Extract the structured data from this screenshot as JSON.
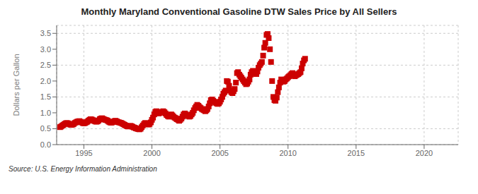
{
  "chart_data": {
    "type": "scatter",
    "title": "Monthly Maryland Conventional Gasoline DTW Sales Price by All Sellers",
    "ylabel": "Dollars per Gallon",
    "annotations": [
      "Source: U.S. Energy Information Administration"
    ],
    "color": "#CC0000",
    "marker": "square",
    "grid": true,
    "xlim": [
      1993.0,
      2022.5
    ],
    "ylim": [
      0.0,
      3.75
    ],
    "xticks": [
      1995,
      2000,
      2005,
      2010,
      2015,
      2020
    ],
    "yticks": [
      {
        "value": 0.0,
        "label": "0.0"
      },
      0.5,
      {
        "value": 1.0,
        "label": "1.0"
      },
      1.5,
      {
        "value": 2.0,
        "label": "2.0"
      },
      2.5,
      {
        "value": 3.0,
        "label": "3.0"
      },
      3.5
    ],
    "x": [
      1993.25,
      1993.33,
      1993.42,
      1993.5,
      1993.58,
      1993.67,
      1993.75,
      1993.83,
      1993.92,
      1994.0,
      1994.08,
      1994.17,
      1994.25,
      1994.33,
      1994.42,
      1994.5,
      1994.58,
      1994.67,
      1994.75,
      1994.83,
      1994.92,
      1995.0,
      1995.08,
      1995.17,
      1995.25,
      1995.33,
      1995.42,
      1995.5,
      1995.58,
      1995.67,
      1995.75,
      1995.83,
      1995.92,
      1996.0,
      1996.08,
      1996.17,
      1996.25,
      1996.33,
      1996.42,
      1996.5,
      1996.58,
      1996.67,
      1996.75,
      1996.83,
      1996.92,
      1997.0,
      1997.08,
      1997.17,
      1997.25,
      1997.33,
      1997.42,
      1997.5,
      1997.58,
      1997.67,
      1997.75,
      1997.83,
      1997.92,
      1998.0,
      1998.08,
      1998.17,
      1998.25,
      1998.33,
      1998.42,
      1998.5,
      1998.58,
      1998.67,
      1998.75,
      1998.83,
      1998.92,
      1999.0,
      1999.08,
      1999.17,
      1999.25,
      1999.33,
      1999.42,
      1999.5,
      1999.58,
      1999.67,
      1999.75,
      1999.83,
      1999.92,
      2000.0,
      2000.08,
      2000.17,
      2000.25,
      2000.33,
      2000.42,
      2000.5,
      2000.58,
      2000.67,
      2000.75,
      2000.83,
      2000.92,
      2001.0,
      2001.08,
      2001.17,
      2001.25,
      2001.33,
      2001.42,
      2001.5,
      2001.58,
      2001.67,
      2001.75,
      2001.83,
      2001.92,
      2002.0,
      2002.08,
      2002.17,
      2002.25,
      2002.33,
      2002.42,
      2002.5,
      2002.58,
      2002.67,
      2002.75,
      2002.83,
      2002.92,
      2003.0,
      2003.08,
      2003.17,
      2003.25,
      2003.33,
      2003.42,
      2003.5,
      2003.58,
      2003.67,
      2003.75,
      2003.83,
      2003.92,
      2004.0,
      2004.08,
      2004.17,
      2004.25,
      2004.33,
      2004.42,
      2004.5,
      2004.58,
      2004.67,
      2004.75,
      2004.83,
      2004.92,
      2005.0,
      2005.08,
      2005.17,
      2005.25,
      2005.33,
      2005.42,
      2005.5,
      2005.58,
      2005.67,
      2005.75,
      2005.83,
      2005.92,
      2006.0,
      2006.08,
      2006.17,
      2006.25,
      2006.33,
      2006.42,
      2006.5,
      2006.58,
      2006.67,
      2006.75,
      2006.83,
      2006.92,
      2007.0,
      2007.08,
      2007.17,
      2007.25,
      2007.33,
      2007.42,
      2007.5,
      2007.58,
      2007.67,
      2007.75,
      2007.83,
      2007.92,
      2008.0,
      2008.08,
      2008.17,
      2008.25,
      2008.33,
      2008.42,
      2008.5,
      2008.58,
      2008.67,
      2008.75,
      2008.83,
      2008.92,
      2009.0,
      2009.08,
      2009.17,
      2009.25,
      2009.33,
      2009.42,
      2009.5,
      2009.58,
      2009.67,
      2009.75,
      2009.83,
      2009.92,
      2010.0,
      2010.08,
      2010.17,
      2010.25,
      2010.33,
      2010.42,
      2010.5,
      2010.58,
      2010.67,
      2010.75,
      2010.83,
      2010.92,
      2011.0,
      2011.08,
      2011.17,
      2011.25
    ],
    "values": [
      0.55,
      0.57,
      0.6,
      0.62,
      0.65,
      0.67,
      0.68,
      0.67,
      0.65,
      0.63,
      0.62,
      0.63,
      0.65,
      0.68,
      0.7,
      0.72,
      0.73,
      0.74,
      0.72,
      0.7,
      0.68,
      0.67,
      0.68,
      0.7,
      0.72,
      0.75,
      0.78,
      0.8,
      0.79,
      0.77,
      0.75,
      0.73,
      0.72,
      0.73,
      0.76,
      0.8,
      0.82,
      0.83,
      0.81,
      0.79,
      0.78,
      0.77,
      0.75,
      0.72,
      0.7,
      0.69,
      0.7,
      0.72,
      0.74,
      0.75,
      0.73,
      0.71,
      0.7,
      0.69,
      0.68,
      0.66,
      0.64,
      0.62,
      0.6,
      0.58,
      0.57,
      0.58,
      0.59,
      0.58,
      0.56,
      0.54,
      0.53,
      0.51,
      0.5,
      0.49,
      0.48,
      0.5,
      0.55,
      0.6,
      0.65,
      0.68,
      0.67,
      0.65,
      0.63,
      0.65,
      0.7,
      0.78,
      0.85,
      0.95,
      1.03,
      1.05,
      1.02,
      0.98,
      1.0,
      1.02,
      1.03,
      1.05,
      1.02,
      0.98,
      0.93,
      0.9,
      0.88,
      0.92,
      0.95,
      0.92,
      0.88,
      0.85,
      0.83,
      0.8,
      0.78,
      0.75,
      0.78,
      0.82,
      0.88,
      0.95,
      0.98,
      0.95,
      0.92,
      0.9,
      0.88,
      0.9,
      0.95,
      1.0,
      1.08,
      1.15,
      1.2,
      1.25,
      1.22,
      1.18,
      1.15,
      1.12,
      1.1,
      1.08,
      1.05,
      1.08,
      1.12,
      1.2,
      1.3,
      1.4,
      1.42,
      1.38,
      1.35,
      1.32,
      1.3,
      1.28,
      1.3,
      1.35,
      1.42,
      1.5,
      1.6,
      1.65,
      1.7,
      2.0,
      1.98,
      1.85,
      1.7,
      1.65,
      1.62,
      1.68,
      1.75,
      1.95,
      2.25,
      2.28,
      2.2,
      2.15,
      2.1,
      2.05,
      2.0,
      1.95,
      1.9,
      1.92,
      1.98,
      2.05,
      2.2,
      2.28,
      2.32,
      2.3,
      2.25,
      2.22,
      2.3,
      2.42,
      2.5,
      2.55,
      2.6,
      2.8,
      3.05,
      3.2,
      3.45,
      3.48,
      3.35,
      3.0,
      2.6,
      2.0,
      1.5,
      1.4,
      1.38,
      1.48,
      1.65,
      1.8,
      1.95,
      2.05,
      2.0,
      1.98,
      2.0,
      2.05,
      2.08,
      2.12,
      2.15,
      2.18,
      2.22,
      2.25,
      2.2,
      2.15,
      2.18,
      2.2,
      2.22,
      2.25,
      2.28,
      2.4,
      2.55,
      2.65,
      2.7
    ]
  }
}
